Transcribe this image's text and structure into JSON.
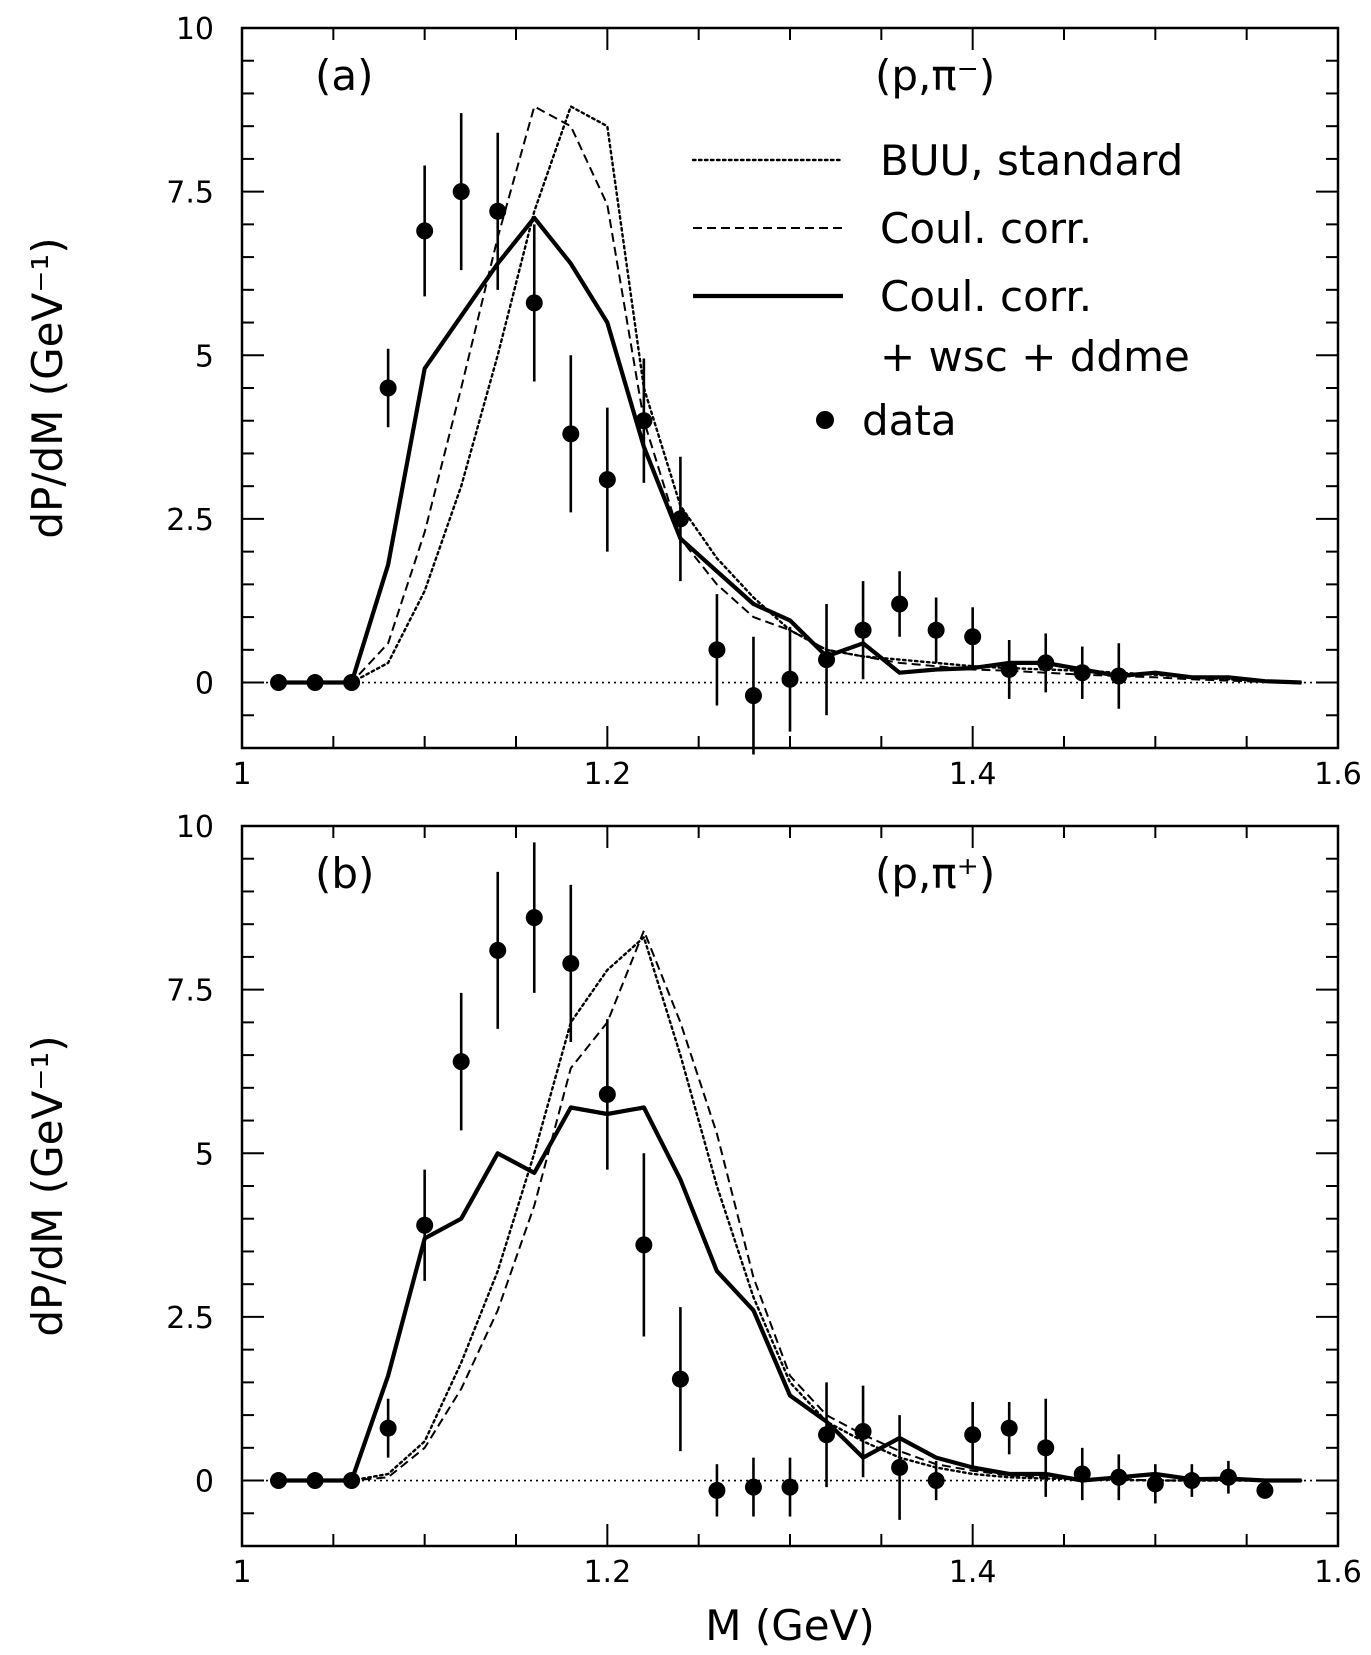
{
  "chart_data": [
    {
      "type": "line",
      "panel_label": "(a)",
      "reaction_label": "(p,π⁻)",
      "ylabel": "dP/dM (GeV⁻¹)",
      "xlabel": "",
      "xlim": [
        1.0,
        1.6
      ],
      "ylim": [
        -1,
        10
      ],
      "x_ticks": [
        1.0,
        1.2,
        1.4,
        1.6
      ],
      "x_tick_labels": [
        "1",
        "1.2",
        "1.4",
        "1.6"
      ],
      "y_ticks": [
        0,
        2.5,
        5,
        7.5,
        10
      ],
      "y_tick_labels": [
        "0",
        "2.5",
        "5",
        "7.5",
        "10"
      ],
      "legend": {
        "placement": "top-right",
        "entries": [
          {
            "series": "buu",
            "label": "BUU, standard"
          },
          {
            "series": "coul",
            "label": "Coul. corr."
          },
          {
            "series": "coulwsc",
            "label": "Coul. corr.",
            "label2": "+ wsc + ddme"
          },
          {
            "series": "data",
            "label": "data"
          }
        ]
      },
      "series": [
        {
          "key": "buu",
          "style": "dotted",
          "x": [
            1.02,
            1.04,
            1.06,
            1.08,
            1.1,
            1.12,
            1.14,
            1.16,
            1.18,
            1.2,
            1.22,
            1.24,
            1.26,
            1.28,
            1.3,
            1.32,
            1.34,
            1.36,
            1.38,
            1.4,
            1.42,
            1.44,
            1.46,
            1.48,
            1.5,
            1.52,
            1.54,
            1.56,
            1.58
          ],
          "y": [
            0,
            0,
            0,
            0.3,
            1.4,
            3.0,
            5.0,
            7.2,
            8.8,
            8.5,
            4.5,
            2.7,
            1.9,
            1.3,
            0.8,
            0.5,
            0.4,
            0.35,
            0.3,
            0.25,
            0.22,
            0.2,
            0.18,
            0.15,
            0.12,
            0.08,
            0.05,
            0.02,
            0
          ]
        },
        {
          "key": "coul",
          "style": "dashed",
          "x": [
            1.02,
            1.04,
            1.06,
            1.08,
            1.1,
            1.12,
            1.14,
            1.16,
            1.18,
            1.2,
            1.22,
            1.24,
            1.26,
            1.28,
            1.3,
            1.32,
            1.34,
            1.36,
            1.38,
            1.4,
            1.42,
            1.44,
            1.46,
            1.48,
            1.5,
            1.52,
            1.54,
            1.56,
            1.58
          ],
          "y": [
            0,
            0,
            0,
            0.6,
            2.3,
            4.5,
            6.8,
            8.8,
            8.5,
            7.3,
            4.0,
            2.2,
            1.5,
            1.0,
            0.8,
            0.5,
            0.4,
            0.3,
            0.25,
            0.2,
            0.18,
            0.15,
            0.12,
            0.1,
            0.08,
            0.05,
            0.03,
            0.01,
            0
          ]
        },
        {
          "key": "coulwsc",
          "style": "solid",
          "x": [
            1.02,
            1.04,
            1.06,
            1.08,
            1.1,
            1.12,
            1.14,
            1.16,
            1.18,
            1.2,
            1.22,
            1.24,
            1.26,
            1.28,
            1.3,
            1.32,
            1.34,
            1.36,
            1.38,
            1.4,
            1.42,
            1.44,
            1.46,
            1.48,
            1.5,
            1.52,
            1.54,
            1.56,
            1.58
          ],
          "y": [
            0,
            0,
            0,
            1.8,
            4.8,
            5.6,
            6.4,
            7.1,
            6.4,
            5.5,
            3.6,
            2.2,
            1.7,
            1.2,
            0.95,
            0.4,
            0.6,
            0.15,
            0.2,
            0.22,
            0.3,
            0.3,
            0.2,
            0.1,
            0.15,
            0.08,
            0.08,
            0.02,
            0
          ]
        },
        {
          "key": "data",
          "style": "points",
          "x": [
            1.02,
            1.04,
            1.06,
            1.08,
            1.1,
            1.12,
            1.14,
            1.16,
            1.18,
            1.2,
            1.22,
            1.24,
            1.26,
            1.28,
            1.3,
            1.32,
            1.34,
            1.36,
            1.38,
            1.4,
            1.42,
            1.44,
            1.46,
            1.48
          ],
          "y": [
            0,
            0,
            0,
            4.5,
            6.9,
            7.5,
            7.2,
            5.8,
            3.8,
            3.1,
            4.0,
            2.5,
            0.5,
            -0.2,
            0.05,
            0.35,
            0.8,
            1.2,
            0.8,
            0.7,
            0.2,
            0.3,
            0.15,
            0.1
          ],
          "err": [
            0,
            0,
            0,
            0.6,
            1.0,
            1.2,
            1.2,
            1.2,
            1.2,
            1.1,
            0.95,
            0.95,
            0.85,
            0.9,
            0.8,
            0.85,
            0.75,
            0.5,
            0.5,
            0.45,
            0.45,
            0.45,
            0.4,
            0.5
          ]
        }
      ]
    },
    {
      "type": "line",
      "panel_label": "(b)",
      "reaction_label": "(p,π⁺)",
      "ylabel": "dP/dM (GeV⁻¹)",
      "xlabel": "M (GeV)",
      "xlim": [
        1.0,
        1.6
      ],
      "ylim": [
        -1,
        10
      ],
      "x_ticks": [
        1.0,
        1.2,
        1.4,
        1.6
      ],
      "x_tick_labels": [
        "1",
        "1.2",
        "1.4",
        "1.6"
      ],
      "y_ticks": [
        0,
        2.5,
        5,
        7.5,
        10
      ],
      "y_tick_labels": [
        "0",
        "2.5",
        "5",
        "7.5",
        "10"
      ],
      "series": [
        {
          "key": "buu",
          "style": "dotted",
          "x": [
            1.02,
            1.04,
            1.06,
            1.08,
            1.1,
            1.12,
            1.14,
            1.16,
            1.18,
            1.2,
            1.22,
            1.24,
            1.26,
            1.28,
            1.3,
            1.32,
            1.34,
            1.36,
            1.38,
            1.4,
            1.42,
            1.44,
            1.46,
            1.48,
            1.5,
            1.52,
            1.54,
            1.56,
            1.58
          ],
          "y": [
            0,
            0,
            0,
            0.1,
            0.6,
            1.8,
            3.2,
            5.0,
            7.0,
            7.8,
            8.3,
            6.5,
            4.5,
            2.8,
            1.5,
            0.9,
            0.6,
            0.35,
            0.2,
            0.1,
            0.05,
            0.03,
            0.02,
            0.01,
            0,
            0,
            0,
            0,
            0
          ]
        },
        {
          "key": "coul",
          "style": "dashed",
          "x": [
            1.02,
            1.04,
            1.06,
            1.08,
            1.1,
            1.12,
            1.14,
            1.16,
            1.18,
            1.2,
            1.22,
            1.24,
            1.26,
            1.28,
            1.3,
            1.32,
            1.34,
            1.36,
            1.38,
            1.4,
            1.42,
            1.44,
            1.46,
            1.48,
            1.5,
            1.52,
            1.54,
            1.56,
            1.58
          ],
          "y": [
            0,
            0,
            0,
            0.05,
            0.5,
            1.4,
            2.6,
            4.2,
            6.3,
            7.0,
            8.4,
            7.0,
            5.3,
            3.1,
            1.6,
            1.0,
            0.7,
            0.45,
            0.25,
            0.15,
            0.08,
            0.05,
            0.03,
            0.02,
            0,
            0,
            0,
            0,
            0
          ]
        },
        {
          "key": "coulwsc",
          "style": "solid",
          "x": [
            1.02,
            1.04,
            1.06,
            1.08,
            1.1,
            1.12,
            1.14,
            1.16,
            1.18,
            1.2,
            1.22,
            1.24,
            1.26,
            1.28,
            1.3,
            1.32,
            1.34,
            1.36,
            1.38,
            1.4,
            1.42,
            1.44,
            1.46,
            1.48,
            1.5,
            1.52,
            1.54,
            1.56,
            1.58
          ],
          "y": [
            0,
            0,
            0,
            1.6,
            3.7,
            4.0,
            5.0,
            4.7,
            5.7,
            5.6,
            5.7,
            4.6,
            3.2,
            2.6,
            1.3,
            0.9,
            0.35,
            0.65,
            0.35,
            0.2,
            0.1,
            0.1,
            0.0,
            0.05,
            0.1,
            0.02,
            0.03,
            0.0,
            0
          ]
        },
        {
          "key": "data",
          "style": "points",
          "x": [
            1.02,
            1.04,
            1.06,
            1.08,
            1.1,
            1.12,
            1.14,
            1.16,
            1.18,
            1.2,
            1.22,
            1.24,
            1.26,
            1.28,
            1.3,
            1.32,
            1.34,
            1.36,
            1.38,
            1.4,
            1.42,
            1.44,
            1.46,
            1.48,
            1.5,
            1.52,
            1.54,
            1.56
          ],
          "y": [
            0,
            0,
            0,
            0.8,
            3.9,
            6.4,
            8.1,
            8.6,
            7.9,
            5.9,
            3.6,
            1.55,
            -0.15,
            -0.1,
            -0.1,
            0.7,
            0.75,
            0.2,
            0,
            0.7,
            0.8,
            0.5,
            0.1,
            0.05,
            -0.05,
            0,
            0.05,
            -0.15
          ],
          "err": [
            0,
            0,
            0,
            0.45,
            0.85,
            1.05,
            1.2,
            1.15,
            1.2,
            1.15,
            1.4,
            1.1,
            0.4,
            0.45,
            0.45,
            0.8,
            0.7,
            0.8,
            0.3,
            0.5,
            0.4,
            0.75,
            0.4,
            0.35,
            0.3,
            0.25,
            0.25,
            0.1
          ]
        }
      ]
    }
  ]
}
